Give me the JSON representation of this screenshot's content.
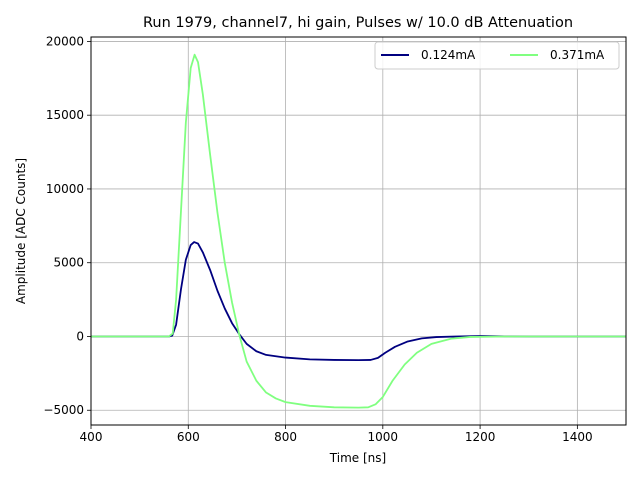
{
  "chart_data": {
    "type": "line",
    "title": "Run 1979, channel7, hi gain, Pulses w/ 10.0 dB Attenuation",
    "xlabel": "Time [ns]",
    "ylabel": "Amplitude [ADC Counts]",
    "xlim": [
      400,
      1500
    ],
    "ylim": [
      -6000,
      20300
    ],
    "xticks": [
      400,
      600,
      800,
      1000,
      1200,
      1400
    ],
    "yticks": [
      -5000,
      0,
      5000,
      10000,
      15000,
      20000
    ],
    "ytick_labels": [
      "−5000",
      "0",
      "5000",
      "10000",
      "15000",
      "20000"
    ],
    "grid": true,
    "legend": "top-right",
    "series": [
      {
        "name": "0.124mA",
        "color": "#000080",
        "points": [
          [
            400,
            0
          ],
          [
            560,
            0
          ],
          [
            567,
            60
          ],
          [
            575,
            800
          ],
          [
            585,
            3200
          ],
          [
            595,
            5200
          ],
          [
            605,
            6200
          ],
          [
            612,
            6400
          ],
          [
            620,
            6300
          ],
          [
            630,
            5700
          ],
          [
            645,
            4500
          ],
          [
            660,
            3100
          ],
          [
            675,
            1900
          ],
          [
            690,
            900
          ],
          [
            705,
            150
          ],
          [
            720,
            -500
          ],
          [
            740,
            -1000
          ],
          [
            760,
            -1250
          ],
          [
            800,
            -1430
          ],
          [
            850,
            -1550
          ],
          [
            900,
            -1590
          ],
          [
            950,
            -1600
          ],
          [
            975,
            -1590
          ],
          [
            990,
            -1450
          ],
          [
            1005,
            -1100
          ],
          [
            1025,
            -700
          ],
          [
            1050,
            -350
          ],
          [
            1080,
            -130
          ],
          [
            1110,
            -40
          ],
          [
            1150,
            0
          ],
          [
            1200,
            30
          ],
          [
            1250,
            10
          ],
          [
            1300,
            0
          ],
          [
            1500,
            0
          ]
        ]
      },
      {
        "name": "0.371mA",
        "color": "#80ff80",
        "points": [
          [
            400,
            0
          ],
          [
            560,
            0
          ],
          [
            568,
            200
          ],
          [
            575,
            2500
          ],
          [
            585,
            8500
          ],
          [
            595,
            14500
          ],
          [
            605,
            18200
          ],
          [
            613,
            19100
          ],
          [
            620,
            18600
          ],
          [
            630,
            16400
          ],
          [
            645,
            12300
          ],
          [
            660,
            8400
          ],
          [
            675,
            5000
          ],
          [
            690,
            2300
          ],
          [
            705,
            100
          ],
          [
            720,
            -1700
          ],
          [
            740,
            -3000
          ],
          [
            760,
            -3800
          ],
          [
            780,
            -4200
          ],
          [
            800,
            -4450
          ],
          [
            850,
            -4700
          ],
          [
            900,
            -4800
          ],
          [
            950,
            -4820
          ],
          [
            970,
            -4800
          ],
          [
            985,
            -4600
          ],
          [
            1000,
            -4100
          ],
          [
            1020,
            -3000
          ],
          [
            1045,
            -1900
          ],
          [
            1070,
            -1100
          ],
          [
            1100,
            -500
          ],
          [
            1140,
            -150
          ],
          [
            1180,
            -30
          ],
          [
            1250,
            0
          ],
          [
            1500,
            0
          ]
        ]
      }
    ]
  }
}
